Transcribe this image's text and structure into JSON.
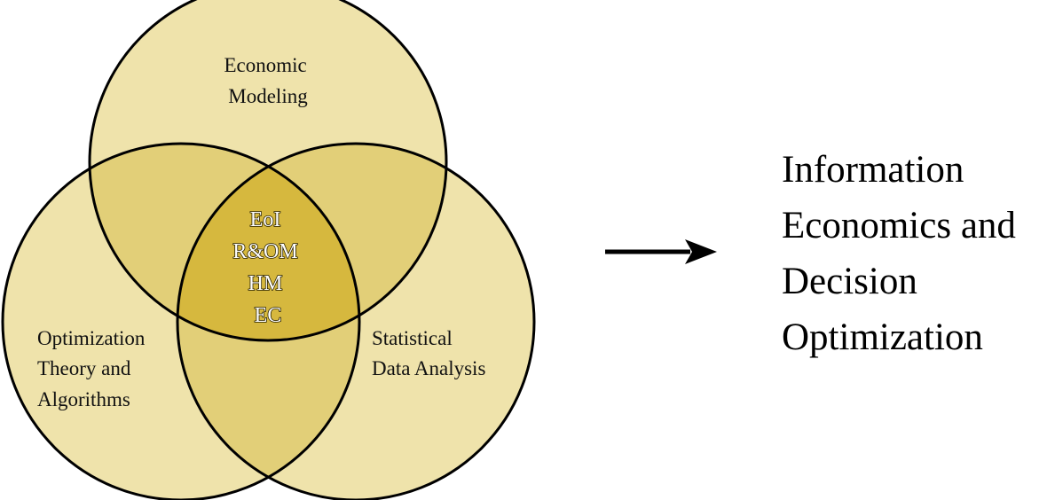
{
  "diagram": {
    "type": "venn-3",
    "colors": {
      "single": "#efe3ab",
      "double": "#e2cf78",
      "triple": "#d6b83e",
      "outline": "#000000"
    },
    "circles": {
      "top": [
        "Economic",
        "Modeling"
      ],
      "left": [
        "Optimization",
        "Theory and",
        "Algorithms"
      ],
      "right": [
        "Statistical",
        "Data Analysis"
      ]
    },
    "intersection": [
      "EoI",
      "R&OM",
      "HM",
      "EC"
    ],
    "result": [
      "Information",
      "Economics and",
      "Decision",
      "Optimization"
    ]
  }
}
